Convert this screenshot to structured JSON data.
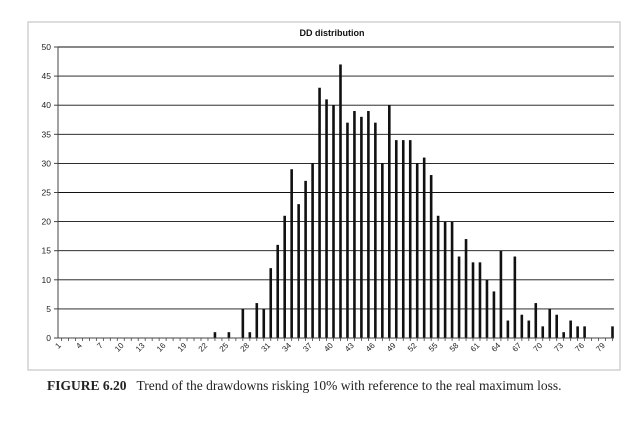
{
  "chart_data": {
    "type": "bar",
    "title": "DD distribution",
    "xlabel": "",
    "ylabel": "",
    "ylim": [
      0,
      50
    ],
    "yticks": [
      0,
      5,
      10,
      15,
      20,
      25,
      30,
      35,
      40,
      45,
      50
    ],
    "x": [
      1,
      2,
      3,
      4,
      5,
      6,
      7,
      8,
      9,
      10,
      11,
      12,
      13,
      14,
      15,
      16,
      17,
      18,
      19,
      20,
      21,
      22,
      23,
      24,
      25,
      26,
      27,
      28,
      29,
      30,
      31,
      32,
      33,
      34,
      35,
      36,
      37,
      38,
      39,
      40,
      41,
      42,
      43,
      44,
      45,
      46,
      47,
      48,
      49,
      50,
      51,
      52,
      53,
      54,
      55,
      56,
      57,
      58,
      59,
      60,
      61,
      62,
      63,
      64,
      65,
      66,
      67,
      68,
      69,
      70,
      71,
      72,
      73,
      74,
      75,
      76,
      77,
      78,
      79,
      80
    ],
    "xtick_labels": [
      "1",
      "4",
      "7",
      "10",
      "13",
      "16",
      "19",
      "22",
      "25",
      "28",
      "31",
      "34",
      "37",
      "40",
      "43",
      "46",
      "49",
      "52",
      "55",
      "58",
      "61",
      "64",
      "67",
      "70",
      "73",
      "76",
      "79"
    ],
    "values": [
      0,
      0,
      0,
      0,
      0,
      0,
      0,
      0,
      0,
      0,
      0,
      0,
      0,
      0,
      0,
      0,
      0,
      0,
      0,
      0,
      0,
      0,
      1,
      0,
      1,
      0,
      5,
      1,
      6,
      5,
      12,
      16,
      21,
      29,
      23,
      27,
      30,
      43,
      41,
      40,
      47,
      37,
      39,
      38,
      39,
      37,
      30,
      40,
      34,
      34,
      34,
      30,
      31,
      28,
      21,
      20,
      20,
      14,
      17,
      13,
      13,
      10,
      8,
      15,
      3,
      14,
      4,
      3,
      6,
      2,
      5,
      4,
      1,
      3,
      2,
      2,
      0,
      0,
      0,
      2
    ],
    "grid": true,
    "legend": "none",
    "colors": {
      "bar": "#111111",
      "grid": "#111111",
      "axis": "#444444",
      "frame": "#bbbbbb"
    }
  },
  "caption": {
    "label": "FIGURE 6.20",
    "text": "Trend of the drawdowns risking 10% with reference to the real maximum loss."
  }
}
